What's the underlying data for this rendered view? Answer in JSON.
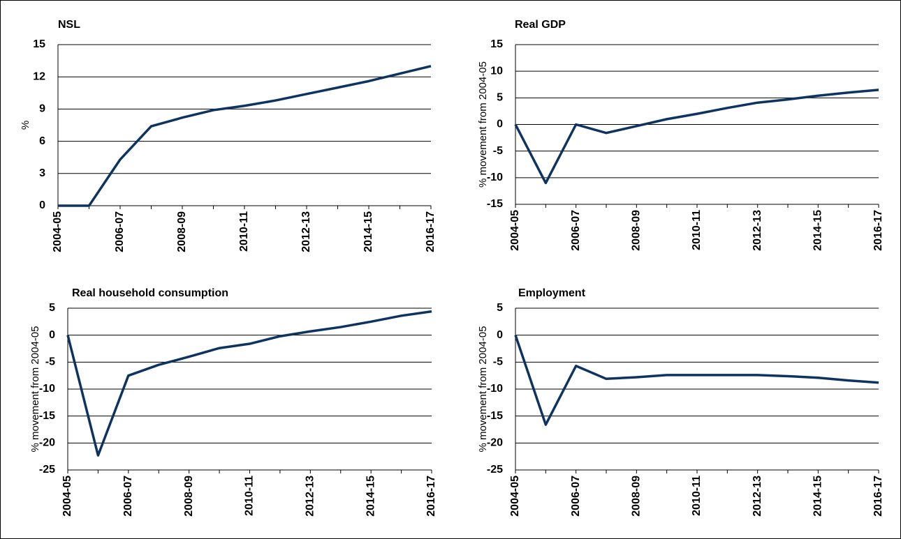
{
  "chart_data": [
    {
      "type": "line",
      "title": "NSL",
      "ylabel": "%",
      "categories": [
        "2004-05",
        null,
        "2006-07",
        null,
        "2008-09",
        null,
        "2010-11",
        null,
        "2012-13",
        null,
        "2014-15",
        null,
        "2016-17"
      ],
      "values": [
        0,
        0,
        4.3,
        7.4,
        8.2,
        8.9,
        9.3,
        9.8,
        10.4,
        11.0,
        11.6,
        12.3,
        13.0
      ],
      "color": "#0d3461",
      "ylim": [
        0,
        15
      ],
      "yticks": [
        0,
        3,
        6,
        9,
        12,
        15
      ],
      "grid": true
    },
    {
      "type": "line",
      "title": "Real GDP",
      "ylabel": "% movement from 2004-05",
      "categories": [
        "2004-05",
        null,
        "2006-07",
        null,
        "2008-09",
        null,
        "2010-11",
        null,
        "2012-13",
        null,
        "2014-15",
        null,
        "2016-17"
      ],
      "values": [
        0,
        -11,
        0,
        -1.6,
        -0.3,
        1,
        2,
        3.1,
        4.1,
        4.7,
        5.4,
        6,
        6.5
      ],
      "color": "#0d3461",
      "ylim": [
        -15,
        15
      ],
      "yticks": [
        -15,
        -10,
        -5,
        0,
        5,
        10,
        15
      ],
      "grid": true
    },
    {
      "type": "line",
      "title": "Real household consumption",
      "ylabel": "% movement from 2004-05",
      "categories": [
        "2004-05",
        null,
        "2006-07",
        null,
        "2008-09",
        null,
        "2010-11",
        null,
        "2012-13",
        null,
        "2014-15",
        null,
        "2016-17"
      ],
      "values": [
        0,
        -22.3,
        -7.5,
        -5.5,
        -4,
        -2.4,
        -1.6,
        -0.2,
        0.7,
        1.5,
        2.5,
        3.6,
        4.4
      ],
      "color": "#0d3461",
      "ylim": [
        -25,
        5
      ],
      "yticks": [
        -25,
        -20,
        -15,
        -10,
        -5,
        0,
        5
      ],
      "grid": true
    },
    {
      "type": "line",
      "title": "Employment",
      "ylabel": "% movement from 2004-05",
      "categories": [
        "2004-05",
        null,
        "2006-07",
        null,
        "2008-09",
        null,
        "2010-11",
        null,
        "2012-13",
        null,
        "2014-15",
        null,
        "2016-17"
      ],
      "values": [
        0,
        -16.6,
        -5.7,
        -8.1,
        -7.8,
        -7.4,
        -7.4,
        -7.4,
        -7.4,
        -7.6,
        -7.9,
        -8.4,
        -8.8
      ],
      "color": "#0d3461",
      "ylim": [
        -25,
        5
      ],
      "yticks": [
        -25,
        -20,
        -15,
        -10,
        -5,
        0,
        5
      ],
      "grid": true
    }
  ]
}
